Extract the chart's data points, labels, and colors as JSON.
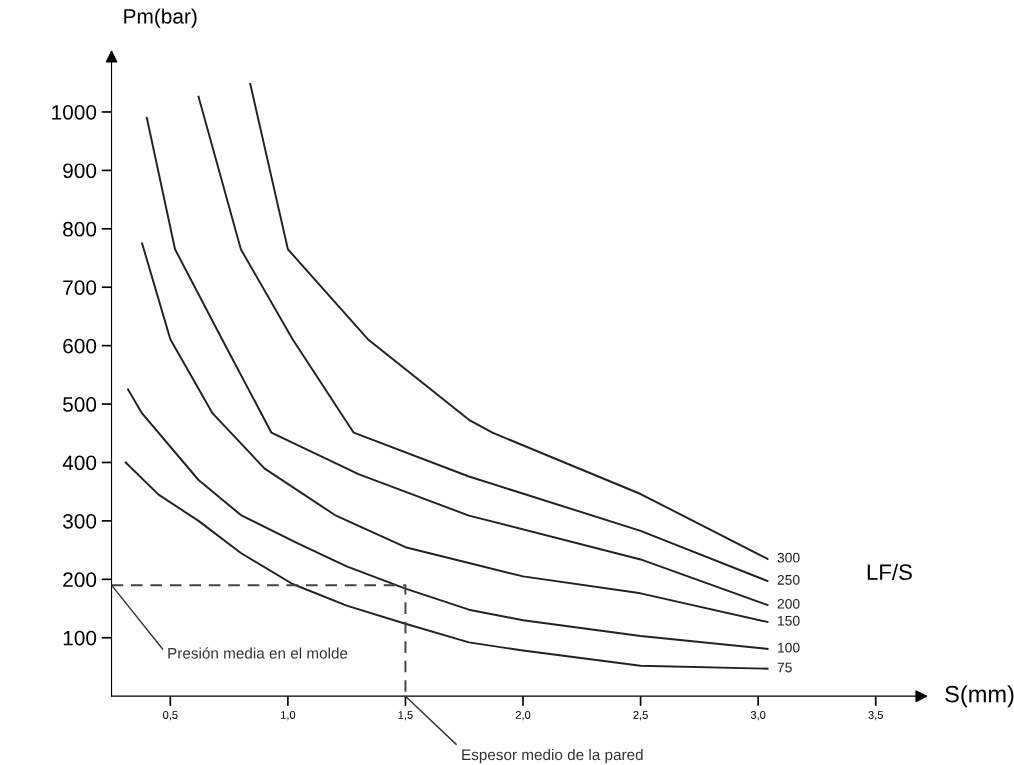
{
  "chart_data": {
    "type": "line",
    "xlabel": "S(mm)",
    "ylabel": "Pm(bar)",
    "xlim": [
      0.25,
      3.7
    ],
    "ylim": [
      0,
      1100
    ],
    "xticks": [
      {
        "value": 0.5,
        "label": "0,5"
      },
      {
        "value": 1.0,
        "label": "1,0"
      },
      {
        "value": 1.5,
        "label": "1,5"
      },
      {
        "value": 2.0,
        "label": "2,0"
      },
      {
        "value": 2.5,
        "label": "2,5"
      },
      {
        "value": 3.0,
        "label": "3,0"
      },
      {
        "value": 3.5,
        "label": "3,5"
      }
    ],
    "yticks": [
      100,
      200,
      300,
      400,
      500,
      600,
      700,
      800,
      900,
      1000
    ],
    "grid": false,
    "legend": false,
    "marker": "none",
    "series": [
      {
        "name": "300",
        "color": "#222222",
        "x": [
          0.84,
          1.0,
          1.34,
          1.77,
          1.87,
          2.5,
          3.04
        ],
        "values": [
          1048,
          765,
          611,
          473,
          451,
          346,
          235
        ]
      },
      {
        "name": "250",
        "color": "#222222",
        "x": [
          0.62,
          0.8,
          1.02,
          1.28,
          1.77,
          2.5,
          3.04
        ],
        "values": [
          1026,
          765,
          611,
          451,
          376,
          283,
          197
        ]
      },
      {
        "name": "200",
        "color": "#222222",
        "x": [
          0.4,
          0.52,
          0.72,
          0.93,
          1.3,
          1.77,
          2.5,
          3.04
        ],
        "values": [
          990,
          765,
          611,
          451,
          380,
          309,
          234,
          156
        ]
      },
      {
        "name": "150",
        "color": "#222222",
        "x": [
          0.38,
          0.5,
          0.68,
          0.9,
          1.2,
          1.5,
          1.77,
          2.0,
          2.5,
          3.04
        ],
        "values": [
          775,
          611,
          484,
          390,
          310,
          255,
          228,
          205,
          176,
          127
        ]
      },
      {
        "name": "100",
        "color": "#222222",
        "x": [
          0.32,
          0.38,
          0.62,
          0.8,
          1.04,
          1.25,
          1.5,
          1.77,
          2.0,
          2.5,
          3.04
        ],
        "values": [
          525,
          484,
          370,
          310,
          262,
          222,
          184,
          148,
          130,
          103,
          81
        ]
      },
      {
        "name": "75",
        "color": "#222222",
        "x": [
          0.31,
          0.45,
          0.62,
          0.8,
          1.02,
          1.25,
          1.5,
          1.77,
          2.0,
          2.5,
          3.04
        ],
        "values": [
          400,
          345,
          300,
          245,
          192,
          155,
          124,
          92,
          78,
          52,
          47
        ]
      },
      {
        "color": "#444444",
        "line_style": "dashed",
        "x": [
          0.25,
          1.5,
          1.5
        ],
        "values": [
          190,
          190,
          0
        ]
      }
    ],
    "annotations": [
      {
        "text": "Presión media en el molde",
        "x": 0.25,
        "y": 190
      },
      {
        "text": "Espesor medio de la pared",
        "x": 1.5,
        "y": 0
      },
      "LF/S"
    ]
  }
}
